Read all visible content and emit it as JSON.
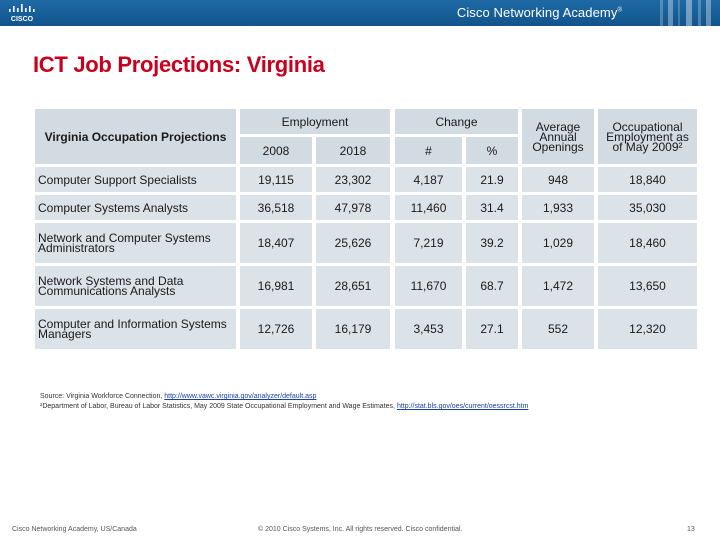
{
  "header": {
    "logo_text": "CISCO",
    "brand": "Cisco Networking Academy",
    "brand_mark": "®"
  },
  "title": "ICT Job Projections: Virginia",
  "table": {
    "row_header": "Virginia Occupation Projections",
    "group_employment": "Employment",
    "group_change": "Change",
    "col_2008": "2008",
    "col_2018": "2018",
    "col_num": "#",
    "col_pct": "%",
    "col_openings": "Average Annual Openings",
    "col_occ": "Occupational Employment as of May 2009²",
    "rows": [
      {
        "name": "Computer Support Specialists",
        "e2008": "19,115",
        "e2018": "23,302",
        "num": "4,187",
        "pct": "21.9",
        "openings": "948",
        "occ": "18,840"
      },
      {
        "name": "Computer Systems Analysts",
        "e2008": "36,518",
        "e2018": "47,978",
        "num": "11,460",
        "pct": "31.4",
        "openings": "1,933",
        "occ": "35,030"
      },
      {
        "name": "Network and Computer Systems Administrators",
        "e2008": "18,407",
        "e2018": "25,626",
        "num": "7,219",
        "pct": "39.2",
        "openings": "1,029",
        "occ": "18,460"
      },
      {
        "name": "Network Systems and Data Communications Analysts",
        "e2008": "16,981",
        "e2018": "28,651",
        "num": "11,670",
        "pct": "68.7",
        "openings": "1,472",
        "occ": "13,650"
      },
      {
        "name": "Computer and Information Systems Managers",
        "e2008": "12,726",
        "e2018": "16,179",
        "num": "3,453",
        "pct": "27.1",
        "openings": "552",
        "occ": "12,320"
      }
    ]
  },
  "sources": {
    "line1_text": "Source: Virginia Workforce Connection, ",
    "line1_link": "http://www.vawc.virginia.gov/analyzer/default.asp",
    "line2_text": "²Department of Labor, Bureau of Labor Statistics, May 2009 State Occupational Employment and Wage Estimates, ",
    "line2_link": "http://stat.bls.gov/oes/current/oessrcst.htm"
  },
  "footer": {
    "left": "Cisco Networking Academy, US/Canada",
    "center": "© 2010 Cisco Systems, Inc. All rights reserved. Cisco confidential.",
    "page": "13"
  },
  "colors": {
    "topbar": "#12548b",
    "title": "#c8001e",
    "cell": "#dbe2e8"
  }
}
